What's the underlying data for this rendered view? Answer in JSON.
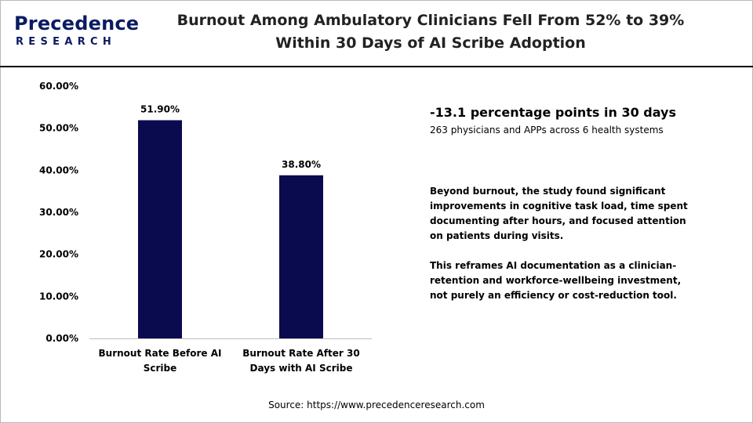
{
  "brand": {
    "name": "Precedence",
    "sub": "RESEARCH",
    "color": "#0a1b63"
  },
  "title": "Burnout Among Ambulatory Clinicians Fell From 52% to 39% Within 30 Days of AI Scribe Adoption",
  "chart_data": {
    "type": "bar",
    "categories": [
      "Burnout Rate Before AI Scribe",
      "Burnout Rate After 30 Days with AI Scribe"
    ],
    "values": [
      51.9,
      38.8
    ],
    "value_labels": [
      "51.90%",
      "38.80%"
    ],
    "yticks": [
      0,
      10,
      20,
      30,
      40,
      50,
      60
    ],
    "ytick_labels": [
      "0.00%",
      "10.00%",
      "20.00%",
      "30.00%",
      "40.00%",
      "50.00%",
      "60.00%"
    ],
    "ylim": [
      0,
      60
    ],
    "grid": false,
    "bar_color": "#0a0a4e"
  },
  "callout": {
    "headline": "-13.1 percentage points in 30 days",
    "subline": "263 physicians and APPs across 6 health systems",
    "paragraph1": "Beyond burnout, the study found significant improvements in cognitive task load, time spent documenting after hours, and focused attention on patients during visits.",
    "paragraph2": "This reframes AI documentation as a clinician-retention and workforce-wellbeing investment, not purely an efficiency or cost-reduction tool."
  },
  "source": "Source: https://www.precedenceresearch.com"
}
